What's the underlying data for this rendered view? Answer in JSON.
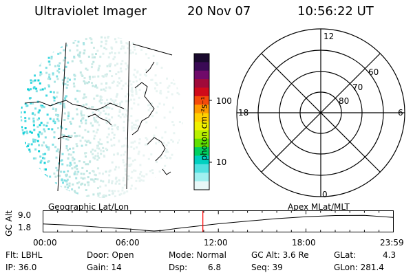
{
  "header": {
    "instrument": "Ultraviolet Imager",
    "date": "20 Nov 07",
    "time": "10:56:22 UT"
  },
  "colorbar": {
    "unit_label": "photon cm⁻²s⁻¹",
    "ticks": [
      "100",
      "10"
    ],
    "colors": [
      "#1a0a2e",
      "#3a0a55",
      "#700a6a",
      "#a00a3a",
      "#d00a1a",
      "#f54a0a",
      "#ff9a00",
      "#ffd000",
      "#f0f000",
      "#b8f000",
      "#60e000",
      "#00d060",
      "#00d0c0",
      "#50e0e0",
      "#a0f0f0",
      "#e8f8f8"
    ]
  },
  "left_panel": {
    "label": "Geographic Lat/Lon"
  },
  "right_panel": {
    "label": "Apex MLat/MLT",
    "mlt_labels": {
      "top": "12",
      "left": "18",
      "right": "6",
      "bottom": "0"
    },
    "lat_labels": [
      "60",
      "70",
      "80"
    ]
  },
  "timeline": {
    "y_axis_label": "GC Alt",
    "y_ticks": [
      "9.0",
      "1.8"
    ],
    "x_ticks": [
      "00:00",
      "06:00",
      "12:00",
      "18:00",
      "23:59"
    ],
    "current_time_hours": 10.94,
    "marker_color": "#ff0000",
    "orbit_altitude_re": [
      [
        0,
        4.4
      ],
      [
        2,
        3.8
      ],
      [
        4,
        2.8
      ],
      [
        6,
        1.9
      ],
      [
        7,
        1.3
      ],
      [
        7.6,
        1.0
      ],
      [
        8.2,
        1.3
      ],
      [
        9,
        2.1
      ],
      [
        10,
        2.9
      ],
      [
        11,
        3.7
      ],
      [
        12,
        4.5
      ],
      [
        14,
        5.8
      ],
      [
        16,
        7.0
      ],
      [
        18,
        7.9
      ],
      [
        20,
        8.5
      ],
      [
        22,
        8.6
      ],
      [
        23.98,
        7.6
      ]
    ]
  },
  "info": {
    "filter": "Flt: LBHL",
    "ip": "IP: 36.0",
    "door": "Door: Open",
    "gain": "Gain: 14",
    "mode": "Mode: Normal",
    "dsp_label": "Dsp:",
    "dsp_value": "6.8",
    "gc_alt": "GC Alt: 3.6 Re",
    "seq": "Seq: 39",
    "glat_label": "GLat:",
    "glat_value": "4.3",
    "glon": "GLon: 281.4"
  }
}
